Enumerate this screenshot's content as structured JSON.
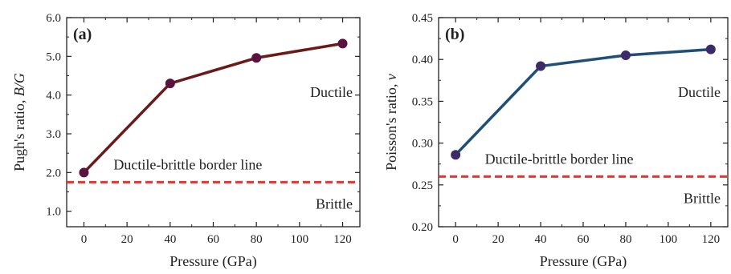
{
  "chart_data": [
    {
      "panel": "(a)",
      "type": "line",
      "xlabel": "Pressure (GPa)",
      "ylabel_main": "Pugh's ratio, ",
      "ylabel_var": "B/G",
      "xlim": [
        -8,
        128
      ],
      "ylim": [
        0.6,
        6.0
      ],
      "xticks": [
        0,
        20,
        40,
        60,
        80,
        100,
        120
      ],
      "yticks": [
        1.0,
        2.0,
        3.0,
        4.0,
        5.0,
        6.0
      ],
      "ytick_labels": [
        "1.0",
        "2.0",
        "3.0",
        "4.0",
        "5.0",
        "6.0"
      ],
      "x": [
        0,
        40,
        80,
        120
      ],
      "y": [
        2.0,
        4.3,
        4.96,
        5.33
      ],
      "line_color": "#6b1a1a",
      "marker_color": "#5a1340",
      "threshold": 1.75,
      "threshold_color": "#e8342c",
      "annotations": {
        "upper": "Ductile",
        "border": "Ductile-brittle border line",
        "lower": "Brittle"
      }
    },
    {
      "panel": "(b)",
      "type": "line",
      "xlabel": "Pressure (GPa)",
      "ylabel_main": "Poisson's ratio, ",
      "ylabel_var": "ν",
      "xlim": [
        -8,
        128
      ],
      "ylim": [
        0.2,
        0.45
      ],
      "xticks": [
        0,
        20,
        40,
        60,
        80,
        100,
        120
      ],
      "yticks": [
        0.2,
        0.25,
        0.3,
        0.35,
        0.4,
        0.45
      ],
      "ytick_labels": [
        "0.20",
        "0.25",
        "0.30",
        "0.35",
        "0.40",
        "0.45"
      ],
      "x": [
        0,
        40,
        80,
        120
      ],
      "y": [
        0.286,
        0.392,
        0.405,
        0.412
      ],
      "line_color": "#1f4e79",
      "marker_color": "#3d2a6b",
      "threshold": 0.26,
      "threshold_color": "#e8342c",
      "annotations": {
        "upper": "Ductile",
        "border": "Ductile-brittle border line",
        "lower": "Brittle"
      }
    }
  ]
}
